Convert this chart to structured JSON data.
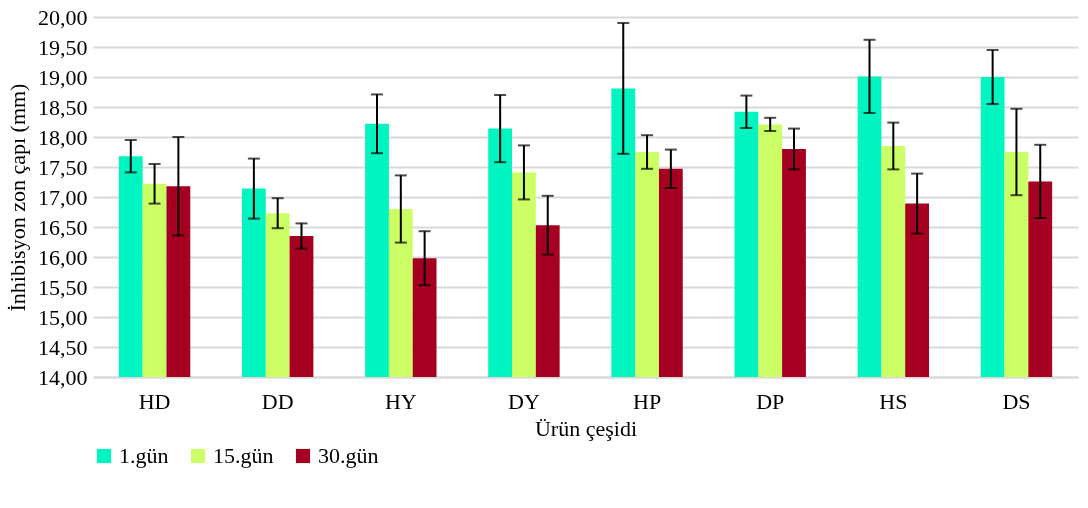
{
  "chart_data": {
    "type": "bar",
    "xlabel": "Ürün çeşidi",
    "ylabel": "İnhibisyon zon çapı (mm)",
    "categories": [
      "HD",
      "DD",
      "HY",
      "DY",
      "HP",
      "DP",
      "HS",
      "DS"
    ],
    "series": [
      {
        "name": "1.gün",
        "color": "#00f5c0",
        "values": [
          17.68,
          17.14,
          18.22,
          18.14,
          18.81,
          18.42,
          19.01,
          19.0
        ],
        "errors": [
          0.27,
          0.5,
          0.49,
          0.56,
          1.09,
          0.27,
          0.61,
          0.45
        ]
      },
      {
        "name": "15.gün",
        "color": "#ccff66",
        "values": [
          17.22,
          16.73,
          16.8,
          17.41,
          17.75,
          18.21,
          17.85,
          17.75
        ],
        "errors": [
          0.33,
          0.25,
          0.56,
          0.45,
          0.28,
          0.11,
          0.39,
          0.72
        ]
      },
      {
        "name": "30.gün",
        "color": "#a50021",
        "values": [
          17.18,
          16.35,
          15.98,
          16.53,
          17.47,
          17.8,
          16.89,
          17.26
        ],
        "errors": [
          0.82,
          0.21,
          0.45,
          0.49,
          0.32,
          0.34,
          0.5,
          0.61
        ]
      }
    ],
    "ylim": [
      14,
      20
    ],
    "yticks": [
      {
        "value": 14,
        "label": "14,00"
      },
      {
        "value": 14.5,
        "label": "14,50"
      },
      {
        "value": 15,
        "label": "15,00"
      },
      {
        "value": 15.5,
        "label": "15,50"
      },
      {
        "value": 16,
        "label": "16,00"
      },
      {
        "value": 16.5,
        "label": "16,50"
      },
      {
        "value": 17,
        "label": "17,00"
      },
      {
        "value": 17.5,
        "label": "17,50"
      },
      {
        "value": 18,
        "label": "18,00"
      },
      {
        "value": 18.5,
        "label": "18,50"
      },
      {
        "value": 19,
        "label": "19,00"
      },
      {
        "value": 19.5,
        "label": "19,50"
      },
      {
        "value": 20,
        "label": "20,00"
      }
    ],
    "grid": "y",
    "legend": "bottom"
  }
}
